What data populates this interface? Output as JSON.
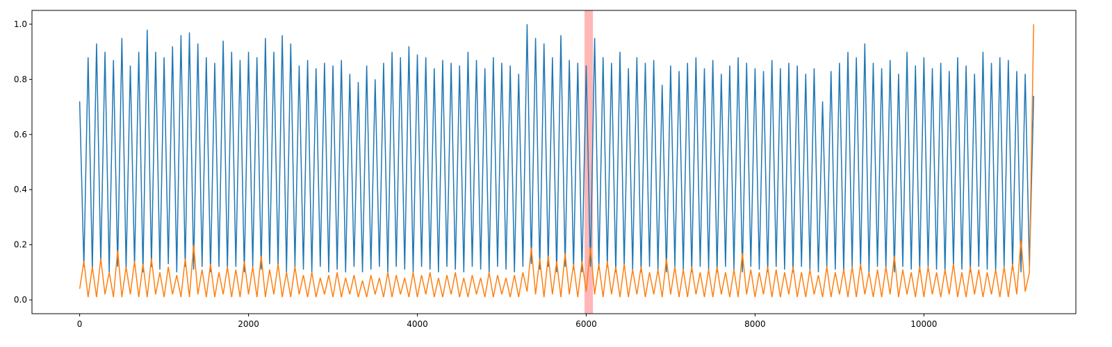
{
  "chart_data": {
    "type": "line",
    "x": [
      0,
      50,
      100,
      150,
      200,
      250,
      300,
      350,
      400,
      450,
      500,
      550,
      600,
      650,
      700,
      750,
      800,
      850,
      900,
      950,
      1000,
      1050,
      1100,
      1150,
      1200,
      1250,
      1300,
      1350,
      1400,
      1450,
      1500,
      1550,
      1600,
      1650,
      1700,
      1750,
      1800,
      1850,
      1900,
      1950,
      2000,
      2050,
      2100,
      2150,
      2200,
      2250,
      2300,
      2350,
      2400,
      2450,
      2500,
      2550,
      2600,
      2650,
      2700,
      2750,
      2800,
      2850,
      2900,
      2950,
      3000,
      3050,
      3100,
      3150,
      3200,
      3250,
      3300,
      3350,
      3400,
      3450,
      3500,
      3550,
      3600,
      3650,
      3700,
      3750,
      3800,
      3850,
      3900,
      3950,
      4000,
      4050,
      4100,
      4150,
      4200,
      4250,
      4300,
      4350,
      4400,
      4450,
      4500,
      4550,
      4600,
      4650,
      4700,
      4750,
      4800,
      4850,
      4900,
      4950,
      5000,
      5050,
      5100,
      5150,
      5200,
      5250,
      5300,
      5350,
      5400,
      5450,
      5500,
      5550,
      5600,
      5650,
      5700,
      5750,
      5800,
      5850,
      5900,
      5950,
      6000,
      6050,
      6100,
      6150,
      6200,
      6250,
      6300,
      6350,
      6400,
      6450,
      6500,
      6550,
      6600,
      6650,
      6700,
      6750,
      6800,
      6850,
      6900,
      6950,
      7000,
      7050,
      7100,
      7150,
      7200,
      7250,
      7300,
      7350,
      7400,
      7450,
      7500,
      7550,
      7600,
      7650,
      7700,
      7750,
      7800,
      7850,
      7900,
      7950,
      8000,
      8050,
      8100,
      8150,
      8200,
      8250,
      8300,
      8350,
      8400,
      8450,
      8500,
      8550,
      8600,
      8650,
      8700,
      8750,
      8800,
      8850,
      8900,
      8950,
      9000,
      9050,
      9100,
      9150,
      9200,
      9250,
      9300,
      9350,
      9400,
      9450,
      9500,
      9550,
      9600,
      9650,
      9700,
      9750,
      9800,
      9850,
      9900,
      9950,
      10000,
      10050,
      10100,
      10150,
      10200,
      10250,
      10300,
      10350,
      10400,
      10450,
      10500,
      10550,
      10600,
      10650,
      10700,
      10750,
      10800,
      10850,
      10900,
      10950,
      11000,
      11050,
      11100,
      11150,
      11200,
      11250,
      11300
    ],
    "series": [
      {
        "color": "#1f77b4",
        "values": [
          0.72,
          0.12,
          0.88,
          0.11,
          0.93,
          0.13,
          0.9,
          0.1,
          0.87,
          0.12,
          0.95,
          0.11,
          0.85,
          0.12,
          0.9,
          0.1,
          0.98,
          0.12,
          0.9,
          0.11,
          0.88,
          0.13,
          0.92,
          0.1,
          0.96,
          0.12,
          0.97,
          0.11,
          0.93,
          0.12,
          0.88,
          0.1,
          0.86,
          0.12,
          0.94,
          0.11,
          0.9,
          0.12,
          0.87,
          0.1,
          0.9,
          0.12,
          0.88,
          0.11,
          0.95,
          0.13,
          0.9,
          0.12,
          0.96,
          0.1,
          0.93,
          0.12,
          0.85,
          0.11,
          0.87,
          0.1,
          0.84,
          0.12,
          0.86,
          0.1,
          0.85,
          0.11,
          0.87,
          0.1,
          0.82,
          0.12,
          0.79,
          0.1,
          0.85,
          0.11,
          0.8,
          0.12,
          0.86,
          0.1,
          0.9,
          0.12,
          0.88,
          0.11,
          0.92,
          0.1,
          0.89,
          0.12,
          0.88,
          0.11,
          0.84,
          0.1,
          0.87,
          0.12,
          0.86,
          0.11,
          0.85,
          0.1,
          0.9,
          0.12,
          0.87,
          0.11,
          0.84,
          0.1,
          0.88,
          0.12,
          0.86,
          0.11,
          0.85,
          0.1,
          0.82,
          0.12,
          1.0,
          0.13,
          0.95,
          0.11,
          0.93,
          0.12,
          0.88,
          0.1,
          0.96,
          0.12,
          0.87,
          0.11,
          0.86,
          0.1,
          0.85,
          0.12,
          0.95,
          0.11,
          0.88,
          0.12,
          0.86,
          0.1,
          0.9,
          0.12,
          0.84,
          0.11,
          0.88,
          0.1,
          0.86,
          0.12,
          0.87,
          0.11,
          0.78,
          0.1,
          0.85,
          0.12,
          0.83,
          0.11,
          0.86,
          0.1,
          0.88,
          0.12,
          0.84,
          0.11,
          0.87,
          0.1,
          0.82,
          0.12,
          0.85,
          0.11,
          0.88,
          0.1,
          0.86,
          0.12,
          0.84,
          0.11,
          0.83,
          0.1,
          0.87,
          0.12,
          0.84,
          0.11,
          0.86,
          0.1,
          0.85,
          0.12,
          0.82,
          0.11,
          0.84,
          0.1,
          0.72,
          0.12,
          0.83,
          0.11,
          0.86,
          0.1,
          0.9,
          0.12,
          0.88,
          0.11,
          0.93,
          0.1,
          0.86,
          0.12,
          0.84,
          0.11,
          0.87,
          0.1,
          0.82,
          0.12,
          0.9,
          0.11,
          0.85,
          0.1,
          0.88,
          0.12,
          0.84,
          0.11,
          0.86,
          0.1,
          0.83,
          0.12,
          0.88,
          0.11,
          0.85,
          0.1,
          0.82,
          0.12,
          0.9,
          0.11,
          0.86,
          0.1,
          0.88,
          0.12,
          0.87,
          0.11,
          0.83,
          0.1,
          0.82,
          0.12,
          0.74
        ]
      },
      {
        "color": "#ff7f0e",
        "values": [
          0.04,
          0.14,
          0.01,
          0.12,
          0.01,
          0.15,
          0.02,
          0.1,
          0.01,
          0.18,
          0.01,
          0.12,
          0.02,
          0.14,
          0.01,
          0.13,
          0.01,
          0.15,
          0.02,
          0.1,
          0.01,
          0.12,
          0.02,
          0.09,
          0.01,
          0.15,
          0.01,
          0.2,
          0.02,
          0.11,
          0.01,
          0.13,
          0.01,
          0.1,
          0.02,
          0.12,
          0.01,
          0.11,
          0.01,
          0.14,
          0.02,
          0.12,
          0.01,
          0.16,
          0.01,
          0.11,
          0.02,
          0.13,
          0.01,
          0.1,
          0.01,
          0.12,
          0.02,
          0.09,
          0.01,
          0.1,
          0.01,
          0.08,
          0.02,
          0.09,
          0.01,
          0.1,
          0.01,
          0.08,
          0.02,
          0.09,
          0.01,
          0.07,
          0.01,
          0.09,
          0.02,
          0.08,
          0.01,
          0.1,
          0.01,
          0.09,
          0.02,
          0.08,
          0.01,
          0.1,
          0.01,
          0.09,
          0.02,
          0.1,
          0.01,
          0.08,
          0.01,
          0.09,
          0.02,
          0.1,
          0.01,
          0.08,
          0.01,
          0.09,
          0.02,
          0.08,
          0.01,
          0.1,
          0.01,
          0.09,
          0.02,
          0.08,
          0.01,
          0.09,
          0.01,
          0.1,
          0.03,
          0.19,
          0.02,
          0.15,
          0.01,
          0.16,
          0.02,
          0.14,
          0.01,
          0.17,
          0.02,
          0.13,
          0.01,
          0.14,
          0.03,
          0.19,
          0.02,
          0.13,
          0.01,
          0.14,
          0.02,
          0.12,
          0.01,
          0.13,
          0.01,
          0.11,
          0.02,
          0.12,
          0.01,
          0.1,
          0.02,
          0.11,
          0.01,
          0.15,
          0.02,
          0.12,
          0.01,
          0.11,
          0.01,
          0.12,
          0.02,
          0.1,
          0.01,
          0.11,
          0.01,
          0.12,
          0.02,
          0.1,
          0.01,
          0.11,
          0.01,
          0.17,
          0.02,
          0.11,
          0.01,
          0.1,
          0.02,
          0.12,
          0.01,
          0.11,
          0.01,
          0.1,
          0.02,
          0.12,
          0.01,
          0.1,
          0.01,
          0.11,
          0.02,
          0.09,
          0.01,
          0.12,
          0.01,
          0.1,
          0.02,
          0.11,
          0.01,
          0.12,
          0.01,
          0.13,
          0.02,
          0.1,
          0.01,
          0.11,
          0.01,
          0.12,
          0.02,
          0.16,
          0.01,
          0.11,
          0.02,
          0.1,
          0.01,
          0.12,
          0.01,
          0.12,
          0.02,
          0.1,
          0.01,
          0.11,
          0.02,
          0.13,
          0.01,
          0.1,
          0.01,
          0.12,
          0.02,
          0.11,
          0.01,
          0.1,
          0.02,
          0.11,
          0.01,
          0.12,
          0.01,
          0.13,
          0.02,
          0.22,
          0.03,
          0.1,
          1.0
        ]
      }
    ],
    "span": {
      "xrange": [
        5980,
        6080
      ],
      "color": "#ff9999"
    },
    "xlim": [
      -565,
      11800
    ],
    "ylim": [
      -0.05,
      1.05
    ],
    "xticks": [
      0,
      2000,
      4000,
      6000,
      8000,
      10000
    ],
    "yticks": [
      {
        "value": 0,
        "label": "0.0"
      },
      {
        "value": 0.2,
        "label": "0.2"
      },
      {
        "value": 0.4,
        "label": "0.4"
      },
      {
        "value": 0.6,
        "label": "0.6"
      },
      {
        "value": 0.8,
        "label": "0.8"
      },
      {
        "value": 1.0,
        "label": "1.0"
      }
    ],
    "grid": false
  }
}
